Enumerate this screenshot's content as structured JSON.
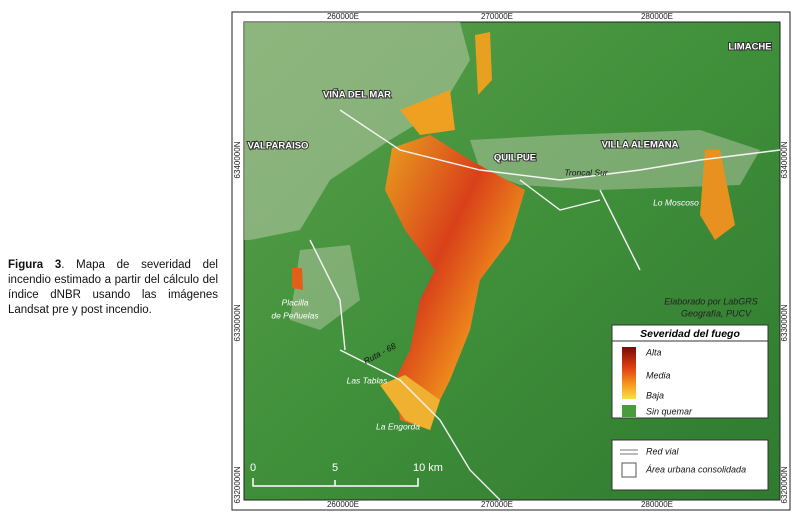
{
  "figure": {
    "caption": {
      "label": "Figura 3",
      "text": ". Mapa de severidad del incendio estimado a partir del cálculo del índice dNBR usando las imágenes Landsat pre y post incendio."
    },
    "map": {
      "grid_labels": {
        "top": [
          "260000E",
          "270000E",
          "280000E"
        ],
        "bottom": [
          "260000E",
          "270000E",
          "280000E"
        ],
        "left": [
          "6340000N",
          "6330000N",
          "6320000N"
        ],
        "right": [
          "6340000N",
          "6330000N",
          "6320000N"
        ]
      },
      "places": {
        "limache": "LIMACHE",
        "vina": "VIÑA DEL MAR",
        "valparaiso": "VALPARAISO",
        "quilpue": "QUILPUE",
        "villa_alemana": "VILLA ALEMANA",
        "troncal": "Troncal Sur",
        "moscoso": "Lo Moscoso",
        "placilla": [
          "Placilla",
          "de Peñuelas"
        ],
        "ruta": "Ruta - 68",
        "tablas": "Las Tablas",
        "engorda": "La Engorda"
      },
      "credit": [
        "Elaborado por LabGRS",
        "Geografía, PUCV"
      ],
      "scale": [
        "0",
        "5",
        "10 km"
      ],
      "legend": {
        "title": "Severidad del fuego",
        "high": "Alta",
        "mid": "Media",
        "low": "Baja",
        "unburned": "Sin quemar",
        "road": "Red vial",
        "urban": "Área urbana consolidada"
      }
    }
  }
}
